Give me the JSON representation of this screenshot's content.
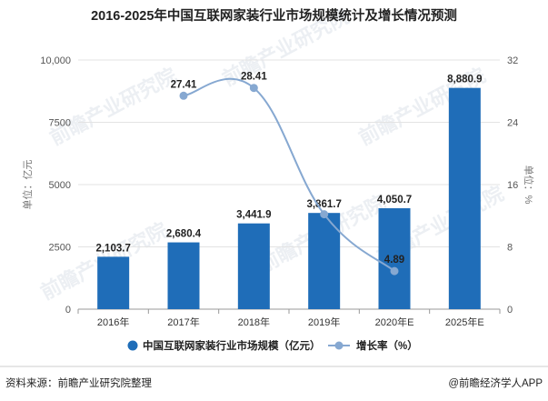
{
  "chart_data": {
    "type": "bar",
    "title": "2016-2025年中国互联网家装行业市场规模统计及增长情况预测",
    "categories": [
      "2016年",
      "2017年",
      "2018年",
      "2019年",
      "2020年E",
      "2025年E"
    ],
    "series": [
      {
        "name": "中国互联网家装行业市场规模（亿元）",
        "type": "bar",
        "axis": "left",
        "values": [
          2103.7,
          2680.4,
          3441.9,
          3861.7,
          4050.7,
          8880.9
        ],
        "labels": [
          "2,103.7",
          "2,680.4",
          "3,441.9",
          "3,861.7",
          "4,050.7",
          "8,880.9"
        ]
      },
      {
        "name": "增长率（%）",
        "type": "line",
        "axis": "right",
        "values": [
          null,
          27.41,
          28.41,
          12.19,
          4.89,
          null
        ],
        "labels": [
          "",
          "27.41",
          "28.41",
          "",
          "4.89",
          ""
        ]
      }
    ],
    "ylabel": "单位：亿元",
    "y2label": "单位：%",
    "ylim": [
      0,
      10000
    ],
    "y2lim": [
      0,
      32
    ],
    "yticks": [
      "0",
      "2500",
      "5000",
      "7500",
      "10,000"
    ],
    "y2ticks": [
      "0",
      "8",
      "16",
      "24",
      "32"
    ],
    "grid": true,
    "legend": "bottom",
    "colors": {
      "bar": "#1f6db8",
      "line": "#86a8d1"
    }
  },
  "footer": {
    "source": "资料来源：前瞻产业研究院整理",
    "brand": "@前瞻经济学人APP"
  },
  "watermark": "前瞻产业研究院"
}
